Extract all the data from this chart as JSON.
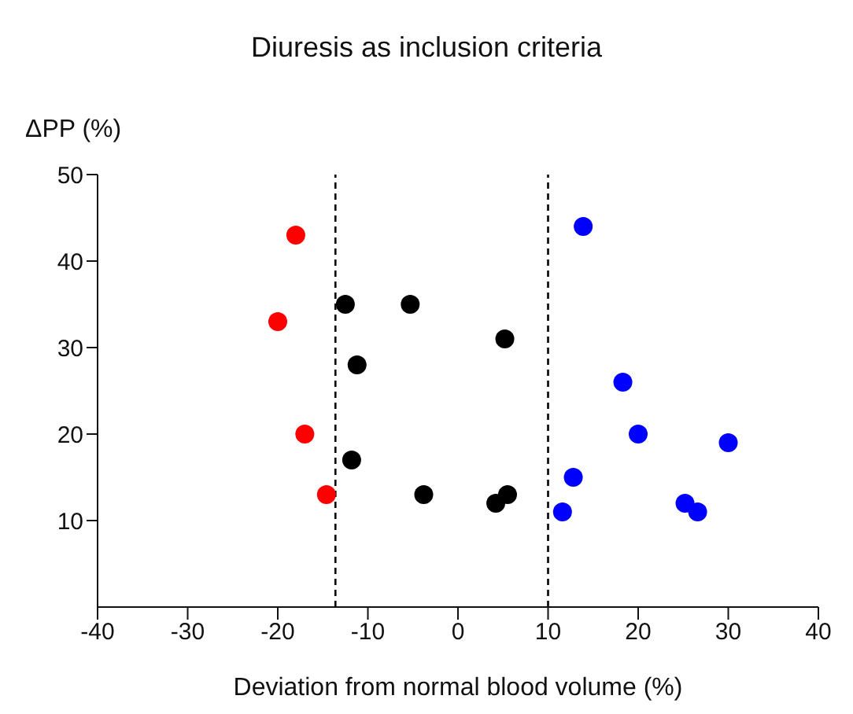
{
  "chart_data": {
    "type": "scatter",
    "title": "Diuresis as inclusion criteria",
    "xlabel": "Deviation from normal blood volume (%)",
    "ylabel": "ΔPP (%)",
    "xlim": [
      -40,
      40
    ],
    "xticks": [
      -40,
      -30,
      -20,
      -10,
      0,
      10,
      20,
      30,
      40
    ],
    "ylim": [
      0,
      50
    ],
    "yticks": [
      10,
      20,
      30,
      40,
      50
    ],
    "grid": false,
    "legend": false,
    "marker": "circle",
    "ref_lines": [
      {
        "axis": "x",
        "value": -13.6,
        "color": "#000000",
        "line_style": "dashed"
      },
      {
        "axis": "x",
        "value": 10,
        "color": "#000000",
        "line_style": "dashed"
      }
    ],
    "series": [
      {
        "color": "#ff0000",
        "x": [
          -18,
          -20,
          -17,
          -14.6
        ],
        "values": [
          43,
          33,
          20,
          13
        ]
      },
      {
        "color": "#000000",
        "x": [
          -12.5,
          -5.3,
          5.2,
          -11.2,
          -11.8,
          -3.8,
          4.2,
          5.5
        ],
        "values": [
          35,
          35,
          31,
          28,
          17,
          13,
          12,
          13
        ]
      },
      {
        "color": "#0000ff",
        "x": [
          13.9,
          18.3,
          20,
          30,
          12.8,
          11.6,
          25.2,
          26.6
        ],
        "values": [
          44,
          26,
          20,
          19,
          15,
          11,
          12,
          11
        ]
      }
    ]
  }
}
